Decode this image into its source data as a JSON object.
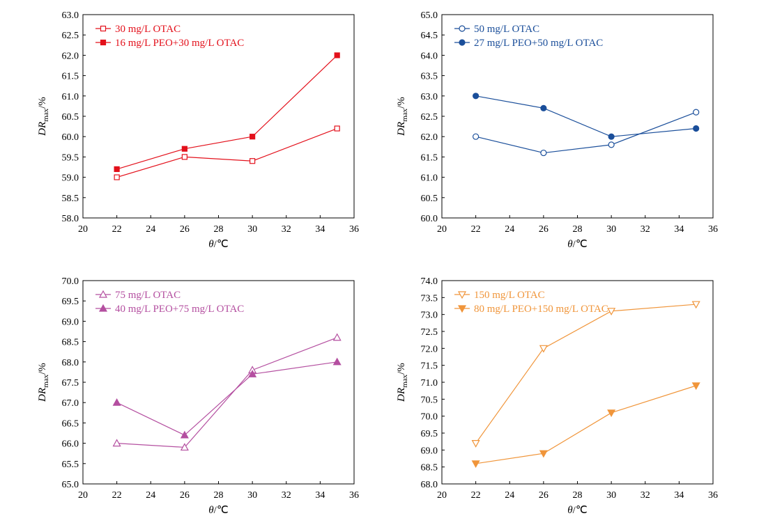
{
  "chart_data": [
    {
      "type": "line",
      "xlabel": "θ/℃",
      "ylabel": "DRmax/%",
      "xlim": [
        20,
        36
      ],
      "ylim": [
        58.0,
        63.0
      ],
      "color": "#e3101b",
      "x_ticks": [
        "20",
        "22",
        "24",
        "26",
        "28",
        "30",
        "32",
        "34",
        "36"
      ],
      "y_ticks": [
        "58.0",
        "58.5",
        "59.0",
        "59.5",
        "60.0",
        "60.5",
        "61.0",
        "61.5",
        "62.0",
        "62.5",
        "63.0"
      ],
      "series": [
        {
          "name": "30 mg/L OTAC",
          "marker": "square-open",
          "x": [
            22,
            26,
            30,
            35
          ],
          "y": [
            59.0,
            59.5,
            59.4,
            60.2
          ]
        },
        {
          "name": "16 mg/L PEO+30 mg/L OTAC",
          "marker": "square-filled",
          "x": [
            22,
            26,
            30,
            35
          ],
          "y": [
            59.2,
            59.7,
            60.0,
            62.0
          ]
        }
      ]
    },
    {
      "type": "line",
      "xlabel": "θ/℃",
      "ylabel": "DRmax/%",
      "xlim": [
        20,
        36
      ],
      "ylim": [
        60.0,
        65.0
      ],
      "color": "#1a4e9a",
      "x_ticks": [
        "20",
        "22",
        "24",
        "26",
        "28",
        "30",
        "32",
        "34",
        "36"
      ],
      "y_ticks": [
        "60.0",
        "60.5",
        "61.0",
        "61.5",
        "62.0",
        "62.5",
        "63.0",
        "63.5",
        "64.0",
        "64.5",
        "65.0"
      ],
      "series": [
        {
          "name": "50 mg/L OTAC",
          "marker": "circle-open",
          "x": [
            22,
            26,
            30,
            35
          ],
          "y": [
            62.0,
            61.6,
            61.8,
            62.6
          ]
        },
        {
          "name": "27 mg/L PEO+50 mg/L OTAC",
          "marker": "circle-filled",
          "x": [
            22,
            26,
            30,
            35
          ],
          "y": [
            63.0,
            62.7,
            62.0,
            62.2
          ]
        }
      ]
    },
    {
      "type": "line",
      "xlabel": "θ/℃",
      "ylabel": "DRmax/%",
      "xlim": [
        20,
        36
      ],
      "ylim": [
        65.0,
        70.0
      ],
      "color": "#b44fa0",
      "x_ticks": [
        "20",
        "22",
        "24",
        "26",
        "28",
        "30",
        "32",
        "34",
        "36"
      ],
      "y_ticks": [
        "65.0",
        "65.5",
        "66.0",
        "66.5",
        "67.0",
        "67.5",
        "68.0",
        "68.5",
        "69.0",
        "69.5",
        "70.0"
      ],
      "series": [
        {
          "name": "75 mg/L OTAC",
          "marker": "triangle-up-open",
          "x": [
            22,
            26,
            30,
            35
          ],
          "y": [
            66.0,
            65.9,
            67.8,
            68.6
          ]
        },
        {
          "name": "40 mg/L PEO+75 mg/L OTAC",
          "marker": "triangle-up-filled",
          "x": [
            22,
            26,
            30,
            35
          ],
          "y": [
            67.0,
            66.2,
            67.7,
            68.0
          ]
        }
      ]
    },
    {
      "type": "line",
      "xlabel": "θ/℃",
      "ylabel": "DRmax/%",
      "xlim": [
        20,
        36
      ],
      "ylim": [
        68.0,
        74.0
      ],
      "color": "#f0953a",
      "x_ticks": [
        "20",
        "22",
        "24",
        "26",
        "28",
        "30",
        "32",
        "34",
        "36"
      ],
      "y_ticks": [
        "68.0",
        "68.5",
        "69.0",
        "69.5",
        "70.0",
        "70.5",
        "71.0",
        "71.5",
        "72.0",
        "72.5",
        "73.0",
        "73.5",
        "74.0"
      ],
      "series": [
        {
          "name": "150 mg/L OTAC",
          "marker": "triangle-down-open",
          "x": [
            22,
            26,
            30,
            35
          ],
          "y": [
            69.2,
            72.0,
            73.1,
            73.3
          ]
        },
        {
          "name": "80 mg/L PEO+150 mg/L OTAC",
          "marker": "triangle-down-filled",
          "x": [
            22,
            26,
            30,
            35
          ],
          "y": [
            68.6,
            68.9,
            70.1,
            70.9
          ]
        }
      ]
    }
  ]
}
